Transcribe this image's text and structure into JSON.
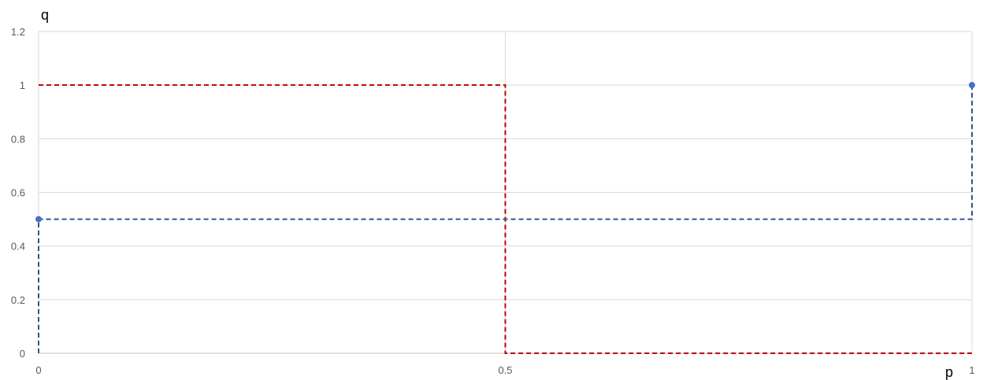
{
  "chart_data": {
    "type": "scatter",
    "title": "",
    "xlabel": "p",
    "ylabel": "q",
    "xlim": [
      0,
      1
    ],
    "ylim": [
      0,
      1.2
    ],
    "grid": true,
    "legend": "none",
    "x_ticks": [
      "0",
      "0.5",
      "1"
    ],
    "y_ticks": [
      "0",
      "0.2",
      "0.4",
      "0.6",
      "0.8",
      "1",
      "1.2"
    ],
    "x_tick_values": [
      0,
      0.5,
      1
    ],
    "y_tick_values": [
      0,
      0.2,
      0.4,
      0.6,
      0.8,
      1,
      1.2
    ],
    "series": [
      {
        "color": "#c00000",
        "style": "dashed",
        "markers": false,
        "points": [
          [
            0,
            1
          ],
          [
            0.5,
            1
          ],
          [
            0.5,
            0
          ],
          [
            1,
            0
          ]
        ]
      },
      {
        "color": "#2f5597",
        "style": "dashed",
        "markers": false,
        "points": [
          [
            0,
            0
          ],
          [
            0,
            0.5
          ],
          [
            1,
            0.5
          ],
          [
            1,
            1
          ]
        ]
      },
      {
        "color": "#4472c4",
        "style": "none",
        "markers": true,
        "points": [
          [
            0,
            0.5
          ],
          [
            1,
            1
          ]
        ]
      }
    ]
  }
}
